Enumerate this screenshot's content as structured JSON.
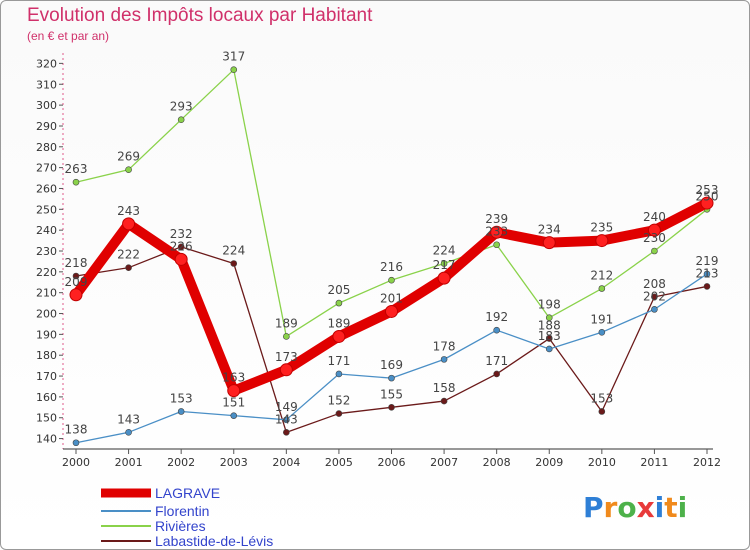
{
  "header": {
    "title": "Evolution des Impôts locaux par Habitant",
    "subtitle": "(en € et par an)"
  },
  "logo": {
    "letters": [
      "P",
      "r",
      "o",
      "x",
      "i",
      "t",
      "i"
    ],
    "colors": [
      "#2e7fd6",
      "#f08a1c",
      "#4db14a",
      "#e83a3a",
      "#2e7fd6",
      "#f08a1c",
      "#4db14a"
    ]
  },
  "chart_data": {
    "type": "line",
    "x": [
      "2000",
      "2001",
      "2002",
      "2003",
      "2004",
      "2005",
      "2006",
      "2007",
      "2008",
      "2009",
      "2010",
      "2011",
      "2012"
    ],
    "yticks": [
      140,
      150,
      160,
      170,
      180,
      190,
      200,
      210,
      220,
      230,
      240,
      250,
      260,
      270,
      280,
      290,
      300,
      310,
      320
    ],
    "ylim": [
      135,
      325
    ],
    "grid": false,
    "legend_position": "bottom-left",
    "series": [
      {
        "name": "LAGRAVE",
        "color": "#e00000",
        "width": 10,
        "marker": 6,
        "values": [
          209,
          243,
          226,
          163,
          173,
          189,
          201,
          217,
          239,
          234,
          235,
          240,
          253
        ]
      },
      {
        "name": "Florentin",
        "color": "#4a8fc6",
        "width": 1.3,
        "marker": 3,
        "values": [
          138,
          143,
          153,
          151,
          149,
          171,
          169,
          178,
          192,
          183,
          191,
          202,
          219
        ]
      },
      {
        "name": "Rivières",
        "color": "#8ad24a",
        "width": 1.3,
        "marker": 3,
        "values": [
          263,
          269,
          293,
          317,
          189,
          205,
          216,
          224,
          233,
          198,
          212,
          230,
          250
        ]
      },
      {
        "name": "Labastide-de-Lévis",
        "color": "#6b1a1a",
        "width": 1.3,
        "marker": 3,
        "values": [
          218,
          222,
          232,
          224,
          143,
          152,
          155,
          158,
          171,
          188,
          153,
          208,
          213
        ]
      }
    ]
  }
}
